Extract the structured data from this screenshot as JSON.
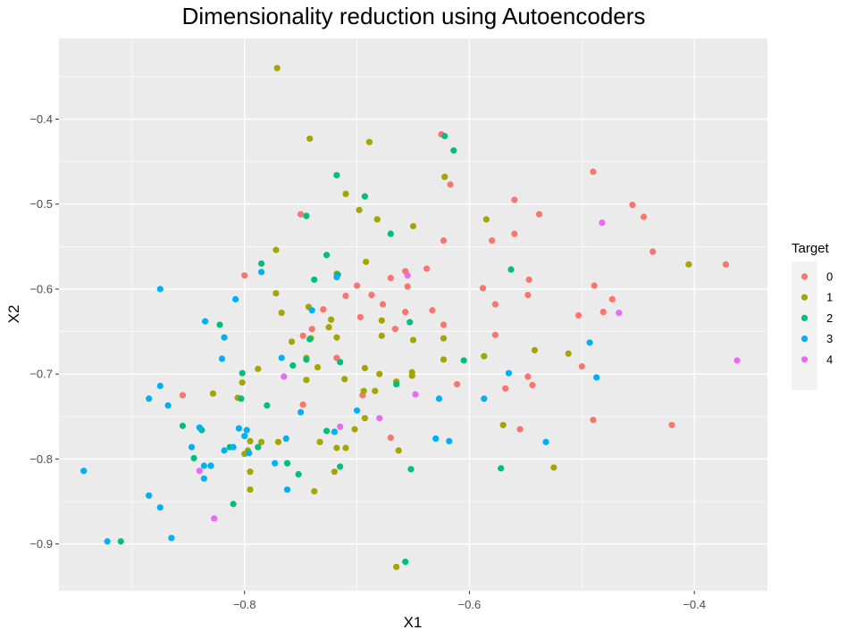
{
  "chart_data": {
    "type": "scatter",
    "title": "Dimensionality reduction using Autoencoders",
    "xlabel": "X1",
    "ylabel": "X2",
    "xlim": [
      -0.965,
      -0.335
    ],
    "ylim": [
      -0.955,
      -0.305
    ],
    "x_ticks": [
      -0.8,
      -0.6,
      -0.4
    ],
    "x_tick_labels": [
      "−0.8",
      "−0.6",
      "−0.4"
    ],
    "y_ticks": [
      -0.9,
      -0.8,
      -0.7,
      -0.6,
      -0.5,
      -0.4
    ],
    "y_tick_labels": [
      "−0.9",
      "−0.8",
      "−0.7",
      "−0.6",
      "−0.5",
      "−0.4"
    ],
    "grid": true,
    "background": "#ebebeb",
    "legend": {
      "title": "Target",
      "position": "right"
    },
    "series": [
      {
        "name": "0",
        "color": "#f8766d",
        "points": [
          [
            -0.625,
            -0.418
          ],
          [
            -0.49,
            -0.462
          ],
          [
            -0.617,
            -0.477
          ],
          [
            -0.56,
            -0.495
          ],
          [
            -0.455,
            -0.501
          ],
          [
            -0.75,
            -0.512
          ],
          [
            -0.538,
            -0.512
          ],
          [
            -0.445,
            -0.515
          ],
          [
            -0.56,
            -0.535
          ],
          [
            -0.623,
            -0.543
          ],
          [
            -0.58,
            -0.543
          ],
          [
            -0.437,
            -0.556
          ],
          [
            -0.372,
            -0.571
          ],
          [
            -0.638,
            -0.576
          ],
          [
            -0.657,
            -0.579
          ],
          [
            -0.8,
            -0.584
          ],
          [
            -0.67,
            -0.587
          ],
          [
            -0.547,
            -0.589
          ],
          [
            -0.7,
            -0.596
          ],
          [
            -0.489,
            -0.596
          ],
          [
            -0.655,
            -0.597
          ],
          [
            -0.588,
            -0.599
          ],
          [
            -0.548,
            -0.607
          ],
          [
            -0.71,
            -0.608
          ],
          [
            -0.687,
            -0.607
          ],
          [
            -0.473,
            -0.612
          ],
          [
            -0.577,
            -0.618
          ],
          [
            -0.677,
            -0.618
          ],
          [
            -0.633,
            -0.625
          ],
          [
            -0.73,
            -0.624
          ],
          [
            -0.481,
            -0.627
          ],
          [
            -0.657,
            -0.627
          ],
          [
            -0.503,
            -0.631
          ],
          [
            -0.697,
            -0.633
          ],
          [
            -0.623,
            -0.642
          ],
          [
            -0.74,
            -0.647
          ],
          [
            -0.666,
            -0.647
          ],
          [
            -0.748,
            -0.655
          ],
          [
            -0.577,
            -0.654
          ],
          [
            -0.718,
            -0.681
          ],
          [
            -0.5,
            -0.691
          ],
          [
            -0.548,
            -0.703
          ],
          [
            -0.611,
            -0.712
          ],
          [
            -0.544,
            -0.713
          ],
          [
            -0.568,
            -0.717
          ],
          [
            -0.855,
            -0.725
          ],
          [
            -0.695,
            -0.725
          ],
          [
            -0.748,
            -0.736
          ],
          [
            -0.49,
            -0.754
          ],
          [
            -0.42,
            -0.76
          ],
          [
            -0.555,
            -0.765
          ],
          [
            -0.67,
            -0.775
          ]
        ]
      },
      {
        "name": "1",
        "color": "#a3a500",
        "points": [
          [
            -0.771,
            -0.34
          ],
          [
            -0.742,
            -0.423
          ],
          [
            -0.689,
            -0.427
          ],
          [
            -0.622,
            -0.468
          ],
          [
            -0.71,
            -0.488
          ],
          [
            -0.698,
            -0.507
          ],
          [
            -0.585,
            -0.518
          ],
          [
            -0.682,
            -0.518
          ],
          [
            -0.65,
            -0.526
          ],
          [
            -0.772,
            -0.554
          ],
          [
            -0.405,
            -0.571
          ],
          [
            -0.692,
            -0.568
          ],
          [
            -0.718,
            -0.582
          ],
          [
            -0.772,
            -0.605
          ],
          [
            -0.743,
            -0.621
          ],
          [
            -0.767,
            -0.628
          ],
          [
            -0.723,
            -0.636
          ],
          [
            -0.678,
            -0.637
          ],
          [
            -0.725,
            -0.645
          ],
          [
            -0.718,
            -0.657
          ],
          [
            -0.65,
            -0.66
          ],
          [
            -0.741,
            -0.658
          ],
          [
            -0.678,
            -0.655
          ],
          [
            -0.623,
            -0.658
          ],
          [
            -0.758,
            -0.662
          ],
          [
            -0.587,
            -0.679
          ],
          [
            -0.512,
            -0.676
          ],
          [
            -0.745,
            -0.681
          ],
          [
            -0.623,
            -0.683
          ],
          [
            -0.735,
            -0.692
          ],
          [
            -0.693,
            -0.693
          ],
          [
            -0.788,
            -0.694
          ],
          [
            -0.651,
            -0.698
          ],
          [
            -0.806,
            -0.728
          ],
          [
            -0.542,
            -0.672
          ],
          [
            -0.651,
            -0.702
          ],
          [
            -0.711,
            -0.706
          ],
          [
            -0.68,
            -0.7
          ],
          [
            -0.828,
            -0.723
          ],
          [
            -0.802,
            -0.71
          ],
          [
            -0.665,
            -0.709
          ],
          [
            -0.684,
            -0.72
          ],
          [
            -0.694,
            -0.72
          ],
          [
            -0.745,
            -0.707
          ],
          [
            -0.693,
            -0.752
          ],
          [
            -0.57,
            -0.76
          ],
          [
            -0.702,
            -0.765
          ],
          [
            -0.77,
            -0.78
          ],
          [
            -0.733,
            -0.78
          ],
          [
            -0.785,
            -0.78
          ],
          [
            -0.795,
            -0.779
          ],
          [
            -0.718,
            -0.787
          ],
          [
            -0.71,
            -0.787
          ],
          [
            -0.797,
            -0.79
          ],
          [
            -0.8,
            -0.794
          ],
          [
            -0.663,
            -0.79
          ],
          [
            -0.525,
            -0.81
          ],
          [
            -0.72,
            -0.815
          ],
          [
            -0.795,
            -0.815
          ],
          [
            -0.738,
            -0.838
          ],
          [
            -0.795,
            -0.836
          ],
          [
            -0.665,
            -0.927
          ]
        ]
      },
      {
        "name": "2",
        "color": "#00bf7d",
        "points": [
          [
            -0.622,
            -0.42
          ],
          [
            -0.614,
            -0.437
          ],
          [
            -0.718,
            -0.466
          ],
          [
            -0.693,
            -0.491
          ],
          [
            -0.745,
            -0.514
          ],
          [
            -0.67,
            -0.535
          ],
          [
            -0.727,
            -0.56
          ],
          [
            -0.785,
            -0.57
          ],
          [
            -0.563,
            -0.577
          ],
          [
            -0.717,
            -0.583
          ],
          [
            -0.738,
            -0.589
          ],
          [
            -0.822,
            -0.642
          ],
          [
            -0.653,
            -0.639
          ],
          [
            -0.742,
            -0.659
          ],
          [
            -0.605,
            -0.684
          ],
          [
            -0.715,
            -0.686
          ],
          [
            -0.745,
            -0.683
          ],
          [
            -0.757,
            -0.69
          ],
          [
            -0.802,
            -0.699
          ],
          [
            -0.803,
            -0.729
          ],
          [
            -0.78,
            -0.737
          ],
          [
            -0.665,
            -0.712
          ],
          [
            -0.855,
            -0.761
          ],
          [
            -0.838,
            -0.766
          ],
          [
            -0.813,
            -0.786
          ],
          [
            -0.788,
            -0.786
          ],
          [
            -0.845,
            -0.799
          ],
          [
            -0.762,
            -0.805
          ],
          [
            -0.83,
            -0.808
          ],
          [
            -0.715,
            -0.809
          ],
          [
            -0.652,
            -0.812
          ],
          [
            -0.572,
            -0.811
          ],
          [
            -0.752,
            -0.818
          ],
          [
            -0.81,
            -0.853
          ],
          [
            -0.91,
            -0.897
          ],
          [
            -0.657,
            -0.921
          ],
          [
            -0.727,
            -0.767
          ]
        ]
      },
      {
        "name": "3",
        "color": "#00b0f6",
        "points": [
          [
            -0.785,
            -0.58
          ],
          [
            -0.718,
            -0.586
          ],
          [
            -0.875,
            -0.6
          ],
          [
            -0.808,
            -0.612
          ],
          [
            -0.74,
            -0.625
          ],
          [
            -0.835,
            -0.638
          ],
          [
            -0.818,
            -0.657
          ],
          [
            -0.493,
            -0.663
          ],
          [
            -0.82,
            -0.682
          ],
          [
            -0.767,
            -0.681
          ],
          [
            -0.565,
            -0.699
          ],
          [
            -0.487,
            -0.704
          ],
          [
            -0.875,
            -0.714
          ],
          [
            -0.885,
            -0.729
          ],
          [
            -0.627,
            -0.729
          ],
          [
            -0.587,
            -0.729
          ],
          [
            -0.868,
            -0.737
          ],
          [
            -0.7,
            -0.743
          ],
          [
            -0.75,
            -0.745
          ],
          [
            -0.72,
            -0.768
          ],
          [
            -0.805,
            -0.764
          ],
          [
            -0.798,
            -0.766
          ],
          [
            -0.8,
            -0.773
          ],
          [
            -0.763,
            -0.776
          ],
          [
            -0.63,
            -0.776
          ],
          [
            -0.618,
            -0.779
          ],
          [
            -0.532,
            -0.78
          ],
          [
            -0.84,
            -0.763
          ],
          [
            -0.847,
            -0.786
          ],
          [
            -0.81,
            -0.786
          ],
          [
            -0.818,
            -0.79
          ],
          [
            -0.796,
            -0.793
          ],
          [
            -0.836,
            -0.808
          ],
          [
            -0.83,
            -0.808
          ],
          [
            -0.773,
            -0.805
          ],
          [
            -0.836,
            -0.823
          ],
          [
            -0.943,
            -0.814
          ],
          [
            -0.885,
            -0.843
          ],
          [
            -0.762,
            -0.836
          ],
          [
            -0.875,
            -0.857
          ],
          [
            -0.865,
            -0.893
          ],
          [
            -0.922,
            -0.897
          ]
        ]
      },
      {
        "name": "4",
        "color": "#e76bf3",
        "points": [
          [
            -0.482,
            -0.522
          ],
          [
            -0.655,
            -0.584
          ],
          [
            -0.467,
            -0.628
          ],
          [
            -0.362,
            -0.684
          ],
          [
            -0.765,
            -0.703
          ],
          [
            -0.648,
            -0.724
          ],
          [
            -0.68,
            -0.752
          ],
          [
            -0.715,
            -0.762
          ],
          [
            -0.84,
            -0.814
          ],
          [
            -0.827,
            -0.87
          ]
        ]
      }
    ]
  }
}
